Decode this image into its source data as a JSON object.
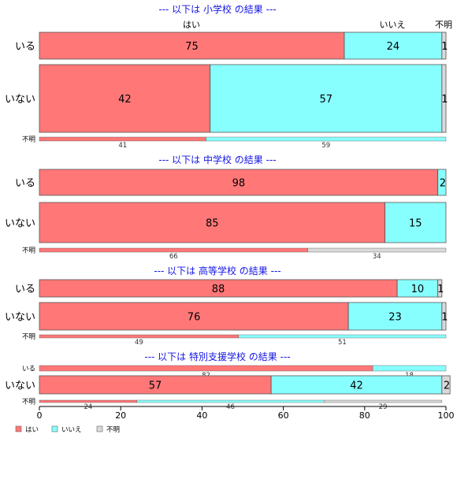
{
  "chart_data": {
    "type": "bar",
    "orientation": "horizontal",
    "stacked": true,
    "xlim": [
      0,
      100
    ],
    "xticks": [
      0,
      20,
      40,
      60,
      80,
      100
    ],
    "legend_position": "bottom-left",
    "grid": false,
    "categories": [
      "はい",
      "いいえ",
      "不明"
    ],
    "colors": {
      "はい": "#ff7777",
      "いいえ": "#88ffff",
      "不明": "#d9d9d9"
    },
    "category_header": [
      "はい",
      "いいえ",
      "不明"
    ],
    "panels": [
      {
        "title": "--- 以下は 小学校 の結果 ---",
        "rows": [
          {
            "label": "いる",
            "values": [
              75,
              24,
              1
            ]
          },
          {
            "label": "いない",
            "values": [
              42,
              57,
              1
            ]
          },
          {
            "label": "不明",
            "values": [
              41,
              59,
              0
            ]
          }
        ]
      },
      {
        "title": "--- 以下は 中学校 の結果 ---",
        "rows": [
          {
            "label": "いる",
            "values": [
              98,
              2,
              0
            ]
          },
          {
            "label": "いない",
            "values": [
              85,
              15,
              0
            ]
          },
          {
            "label": "不明",
            "values": [
              66,
              0,
              34
            ]
          }
        ]
      },
      {
        "title": "--- 以下は 高等学校 の結果 ---",
        "rows": [
          {
            "label": "いる",
            "values": [
              88,
              10,
              1
            ]
          },
          {
            "label": "いない",
            "values": [
              76,
              23,
              1
            ]
          },
          {
            "label": "不明",
            "values": [
              49,
              51,
              0
            ]
          }
        ]
      },
      {
        "title": "--- 以下は 特別支援学校 の結果 ---",
        "rows": [
          {
            "label": "いる",
            "values": [
              82,
              18,
              0
            ]
          },
          {
            "label": "いない",
            "values": [
              57,
              42,
              2
            ]
          },
          {
            "label": "不明",
            "values": [
              24,
              46,
              29
            ]
          }
        ]
      }
    ]
  }
}
